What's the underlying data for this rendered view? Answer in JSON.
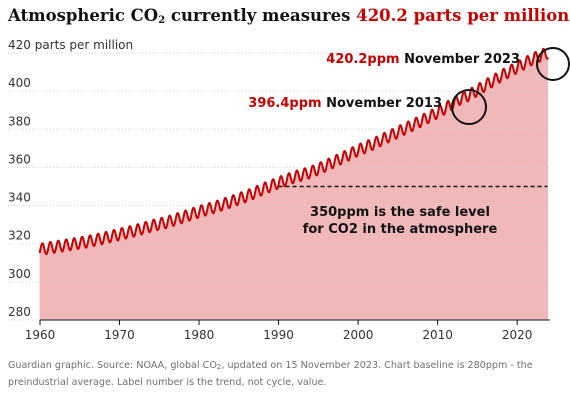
{
  "title": {
    "prefix": "Atmospheric CO",
    "subscript": "2",
    "middle": " currently measures ",
    "highlight": "420.2 parts per million"
  },
  "footer": {
    "part1": "Guardian graphic. Source: NOAA, global CO",
    "subscript": "2",
    "part2": ", updated on 15 November 2023. Chart baseline is 280ppm - the preindustrial average. Label number is the trend, not cycle, value."
  },
  "colors": {
    "accent": "#c70000",
    "fill": "#f1b8b9",
    "text": "#121212",
    "muted": "#707070",
    "grid": "#cfcfcf"
  },
  "chart_data": {
    "type": "line",
    "title": "Atmospheric CO2 currently measures 420.2 parts per million",
    "ylabel": "parts per million",
    "xlabel": "",
    "xlim": [
      1960,
      2024
    ],
    "ylim": [
      280,
      425
    ],
    "baseline": 280,
    "grid": true,
    "x_ticks": [
      1960,
      1970,
      1980,
      1990,
      2000,
      2010,
      2020
    ],
    "y_ticks": [
      420,
      400,
      380,
      360,
      340,
      320,
      300,
      280
    ],
    "y_top_label": "420 parts per million",
    "seasonal_amplitude_ppm": 3,
    "series": [
      {
        "name": "CO2",
        "x": [
          1959,
          1960,
          1962,
          1964,
          1966,
          1968,
          1970,
          1972,
          1974,
          1976,
          1978,
          1980,
          1982,
          1984,
          1986,
          1988,
          1990,
          1992,
          1994,
          1996,
          1998,
          2000,
          2002,
          2004,
          2006,
          2008,
          2010,
          2012,
          2013,
          2014,
          2016,
          2018,
          2020,
          2022,
          2023.9
        ],
        "y": [
          315.5,
          317.0,
          318.4,
          319.7,
          321.1,
          322.9,
          324.9,
          326.9,
          329.3,
          331.3,
          334.0,
          336.8,
          339.2,
          342.0,
          345.0,
          348.6,
          352.0,
          355.0,
          357.4,
          361.0,
          365.0,
          369.0,
          372.5,
          376.5,
          380.5,
          384.5,
          388.8,
          393.5,
          396.4,
          398.0,
          403.0,
          408.0,
          412.5,
          417.0,
          420.2
        ]
      }
    ],
    "annotations": [
      {
        "value": "396.4ppm",
        "text": " November 2013",
        "x": 2013.9,
        "y": 396.4,
        "circle": true
      },
      {
        "value": "420.2ppm",
        "text": " November 2023",
        "x": 2023.9,
        "y": 420.2,
        "circle": true
      },
      {
        "text_line1": "350ppm is the safe level",
        "text_line2": "for CO2 in the atmosphere",
        "y": 350,
        "x_from": 1990,
        "x_to": 2023.8,
        "style": "dashed"
      }
    ]
  }
}
